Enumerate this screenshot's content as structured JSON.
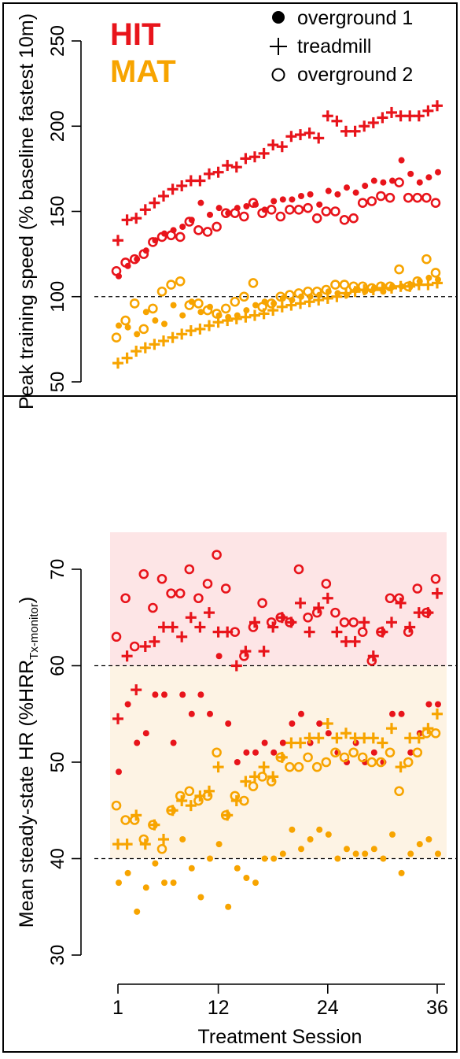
{
  "colors": {
    "hit": "#e8141b",
    "mat": "#f7a400",
    "hit_band": "#fde5e6",
    "mat_band": "#fdf3e4",
    "axis": "#000000"
  },
  "legend": {
    "groups": [
      {
        "label": "HIT",
        "color": "#e8141b"
      },
      {
        "label": "MAT",
        "color": "#f7a400"
      }
    ],
    "markers": [
      {
        "symbol": "filled-circle",
        "label": "overground 1"
      },
      {
        "symbol": "plus",
        "label": "treadmill"
      },
      {
        "symbol": "open-circle",
        "label": "overground 2"
      }
    ],
    "placement": "top"
  },
  "x_axis": {
    "label": "Treatment Session",
    "ticks": [
      1,
      12,
      24,
      36
    ],
    "range": [
      0,
      37
    ]
  },
  "chart_data": [
    {
      "type": "scatter",
      "ylabel": "Peak training speed (% baseline fastest 10m)",
      "ylim": [
        50,
        260
      ],
      "yticks": [
        50,
        100,
        150,
        200,
        250
      ],
      "reference_lines": [
        100
      ],
      "series": [
        {
          "name": "HIT",
          "marker": "overground 1",
          "color": "#e8141b",
          "x": [
            1,
            2,
            3,
            4,
            5,
            6,
            7,
            8,
            9,
            10,
            11,
            12,
            13,
            14,
            15,
            16,
            17,
            18,
            19,
            20,
            21,
            22,
            23,
            24,
            25,
            26,
            27,
            28,
            29,
            30,
            31,
            32,
            33,
            34,
            35,
            36
          ],
          "y": [
            112,
            118,
            122,
            127,
            133,
            137,
            139,
            141,
            145,
            155,
            148,
            152,
            149,
            152,
            153,
            154,
            151,
            156,
            157,
            157,
            159,
            160,
            154,
            162,
            160,
            164,
            161,
            165,
            168,
            167,
            168,
            180,
            172,
            167,
            170,
            173
          ]
        },
        {
          "name": "HIT",
          "marker": "treadmill",
          "color": "#e8141b",
          "x": [
            1,
            2,
            3,
            4,
            5,
            6,
            7,
            8,
            9,
            10,
            11,
            12,
            13,
            14,
            15,
            16,
            17,
            18,
            19,
            20,
            21,
            22,
            23,
            24,
            25,
            26,
            27,
            28,
            29,
            30,
            31,
            32,
            33,
            34,
            35,
            36
          ],
          "y": [
            133,
            145,
            146,
            151,
            155,
            159,
            163,
            165,
            168,
            168,
            172,
            173,
            177,
            176,
            181,
            182,
            184,
            189,
            188,
            194,
            195,
            196,
            193,
            206,
            203,
            197,
            197,
            200,
            202,
            205,
            208,
            206,
            206,
            206,
            209,
            212
          ]
        },
        {
          "name": "HIT",
          "marker": "overground 2",
          "color": "#e8141b",
          "x": [
            1,
            2,
            3,
            4,
            5,
            6,
            7,
            8,
            9,
            10,
            11,
            12,
            13,
            14,
            15,
            16,
            17,
            18,
            19,
            20,
            21,
            22,
            23,
            24,
            25,
            26,
            27,
            28,
            29,
            30,
            31,
            32,
            33,
            34,
            35,
            36
          ],
          "y": [
            115,
            120,
            122,
            125,
            132,
            135,
            136,
            135,
            144,
            139,
            138,
            141,
            149,
            149,
            147,
            155,
            149,
            151,
            147,
            151,
            151,
            152,
            146,
            150,
            150,
            145,
            146,
            155,
            156,
            159,
            158,
            167,
            158,
            158,
            158,
            155
          ]
        },
        {
          "name": "MAT",
          "marker": "overground 1",
          "color": "#f7a400",
          "x": [
            1,
            2,
            3,
            4,
            5,
            6,
            7,
            8,
            9,
            10,
            11,
            12,
            13,
            14,
            15,
            16,
            17,
            18,
            19,
            20,
            21,
            22,
            23,
            24,
            25,
            26,
            27,
            28,
            29,
            30,
            31,
            32,
            33,
            34,
            35,
            36
          ],
          "y": [
            83,
            82,
            78,
            91,
            86,
            84,
            95,
            89,
            97,
            91,
            94,
            89,
            88,
            89,
            92,
            95,
            97,
            96,
            99,
            98,
            100,
            100,
            101,
            103,
            102,
            101,
            104,
            103,
            105,
            103,
            106,
            106,
            107,
            109,
            111,
            110
          ]
        },
        {
          "name": "MAT",
          "marker": "treadmill",
          "color": "#f7a400",
          "x": [
            1,
            2,
            3,
            4,
            5,
            6,
            7,
            8,
            9,
            10,
            11,
            12,
            13,
            14,
            15,
            16,
            17,
            18,
            19,
            20,
            21,
            22,
            23,
            24,
            25,
            26,
            27,
            28,
            29,
            30,
            31,
            32,
            33,
            34,
            35,
            36
          ],
          "y": [
            61,
            64,
            68,
            70,
            72,
            74,
            76,
            78,
            80,
            81,
            83,
            85,
            86,
            87,
            88,
            89,
            90,
            92,
            94,
            95,
            96,
            97,
            98,
            99,
            100,
            102,
            103,
            104,
            104,
            105,
            105,
            106,
            106,
            107,
            107,
            108
          ]
        },
        {
          "name": "MAT",
          "marker": "overground 2",
          "color": "#f7a400",
          "x": [
            1,
            2,
            3,
            4,
            5,
            6,
            7,
            8,
            9,
            10,
            11,
            12,
            13,
            14,
            15,
            16,
            17,
            18,
            19,
            20,
            21,
            22,
            23,
            24,
            25,
            26,
            27,
            28,
            29,
            30,
            31,
            32,
            33,
            34,
            35,
            36
          ],
          "y": [
            76,
            86,
            96,
            81,
            93,
            103,
            107,
            109,
            95,
            96,
            92,
            90,
            93,
            97,
            100,
            108,
            94,
            96,
            100,
            101,
            102,
            103,
            103,
            104,
            107,
            107,
            106,
            106,
            105,
            106,
            106,
            116,
            106,
            109,
            122,
            114
          ]
        }
      ]
    },
    {
      "type": "scatter",
      "ylabel": "Mean steady-state HR (%HRR",
      "ylabel_subscript": "Tx-monitor",
      "ylabel_suffix": ")",
      "ylim": [
        30,
        74
      ],
      "yticks": [
        30,
        40,
        50,
        60,
        70
      ],
      "reference_lines": [
        40,
        60
      ],
      "bands": [
        {
          "from": 60,
          "to": 74,
          "color": "#fde5e6"
        },
        {
          "from": 40,
          "to": 60,
          "color": "#fdf3e4"
        }
      ],
      "series": [
        {
          "name": "HIT",
          "marker": "overground 1",
          "color": "#e8141b",
          "x": [
            1,
            2,
            3,
            4,
            5,
            6,
            7,
            8,
            9,
            10,
            11,
            12,
            13,
            14,
            15,
            16,
            17,
            18,
            19,
            20,
            21,
            22,
            23,
            24,
            25,
            26,
            27,
            28,
            29,
            30,
            31,
            32,
            33,
            34,
            35,
            36
          ],
          "y": [
            49,
            56,
            52,
            53,
            57,
            57,
            52,
            57,
            55,
            57,
            55,
            61,
            54,
            50,
            51,
            51,
            52,
            51,
            52,
            54,
            55,
            52,
            54,
            53,
            51,
            50,
            52,
            50,
            51,
            50,
            55,
            55,
            51,
            53,
            56,
            56
          ]
        },
        {
          "name": "HIT",
          "marker": "treadmill",
          "color": "#e8141b",
          "x": [
            1,
            2,
            3,
            4,
            5,
            6,
            7,
            8,
            9,
            10,
            11,
            12,
            13,
            14,
            15,
            16,
            17,
            18,
            19,
            20,
            21,
            22,
            23,
            24,
            25,
            26,
            27,
            28,
            29,
            30,
            31,
            32,
            33,
            34,
            35,
            36
          ],
          "y": [
            54.5,
            61,
            57.5,
            62,
            62.5,
            64,
            64,
            63,
            65,
            64,
            65.5,
            63.5,
            63.5,
            60,
            61.5,
            64.5,
            61.5,
            64,
            65,
            64.5,
            66.5,
            63.5,
            66,
            67,
            63.5,
            62.5,
            62.5,
            64.5,
            61,
            63.5,
            64.5,
            66.5,
            64,
            65.5,
            65.5,
            67.5
          ]
        },
        {
          "name": "HIT",
          "marker": "overground 2",
          "color": "#e8141b",
          "x": [
            1,
            2,
            3,
            4,
            5,
            6,
            7,
            8,
            9,
            10,
            11,
            12,
            13,
            14,
            15,
            16,
            17,
            18,
            19,
            20,
            21,
            22,
            23,
            24,
            25,
            26,
            27,
            28,
            29,
            30,
            31,
            32,
            33,
            34,
            35,
            36
          ],
          "y": [
            63,
            67,
            62,
            69.5,
            66,
            69,
            67.5,
            67.5,
            70,
            67,
            68.5,
            71.5,
            68,
            63.5,
            61,
            64,
            66.5,
            64.5,
            65,
            64.5,
            70,
            65,
            65.5,
            68.5,
            65.5,
            64.5,
            64.5,
            63.5,
            60.5,
            63.5,
            67,
            67,
            63.5,
            68,
            65.5,
            69
          ]
        },
        {
          "name": "MAT",
          "marker": "overground 1",
          "color": "#f7a400",
          "x": [
            1,
            2,
            3,
            4,
            5,
            6,
            7,
            8,
            9,
            10,
            11,
            12,
            13,
            14,
            15,
            16,
            17,
            18,
            19,
            20,
            21,
            22,
            23,
            24,
            25,
            26,
            27,
            28,
            29,
            30,
            31,
            32,
            33,
            34,
            35,
            36
          ],
          "y": [
            37.5,
            38.5,
            34.5,
            37,
            39.5,
            37.5,
            37.5,
            42,
            39,
            36,
            40,
            41.5,
            35,
            39,
            38,
            37.5,
            40,
            40,
            40.5,
            43,
            41,
            42,
            43,
            42.5,
            40,
            41,
            40.5,
            40.5,
            41,
            40,
            42.5,
            38.5,
            40.5,
            41.5,
            42,
            40.5
          ]
        },
        {
          "name": "MAT",
          "marker": "treadmill",
          "color": "#f7a400",
          "x": [
            1,
            2,
            3,
            4,
            5,
            6,
            7,
            8,
            9,
            10,
            11,
            12,
            13,
            14,
            15,
            16,
            17,
            18,
            19,
            20,
            21,
            22,
            23,
            24,
            25,
            26,
            27,
            28,
            29,
            30,
            31,
            32,
            33,
            34,
            35,
            36
          ],
          "y": [
            41.5,
            41.5,
            44.5,
            41.5,
            43.5,
            42,
            45,
            46,
            45.5,
            46.5,
            47,
            49.5,
            44.5,
            46,
            48,
            48.5,
            49.5,
            48.5,
            50.5,
            52,
            52,
            52.5,
            52.5,
            54,
            52.5,
            53,
            52.5,
            52.5,
            52.5,
            52,
            53.5,
            49.5,
            52.5,
            52.5,
            53.5,
            55
          ]
        },
        {
          "name": "MAT",
          "marker": "overground 2",
          "color": "#f7a400",
          "x": [
            1,
            2,
            3,
            4,
            5,
            6,
            7,
            8,
            9,
            10,
            11,
            12,
            13,
            14,
            15,
            16,
            17,
            18,
            19,
            20,
            21,
            22,
            23,
            24,
            25,
            26,
            27,
            28,
            29,
            30,
            31,
            32,
            33,
            34,
            35,
            36
          ],
          "y": [
            45.5,
            44,
            44,
            42,
            43.5,
            41,
            45,
            46.5,
            47,
            46,
            46.5,
            51,
            44.5,
            46.5,
            46,
            47.5,
            48.5,
            48,
            50.5,
            49.5,
            49.5,
            50.5,
            49.5,
            50,
            51,
            50.5,
            51,
            50.5,
            50,
            50,
            51,
            47,
            50,
            51,
            53,
            53
          ]
        }
      ]
    }
  ]
}
